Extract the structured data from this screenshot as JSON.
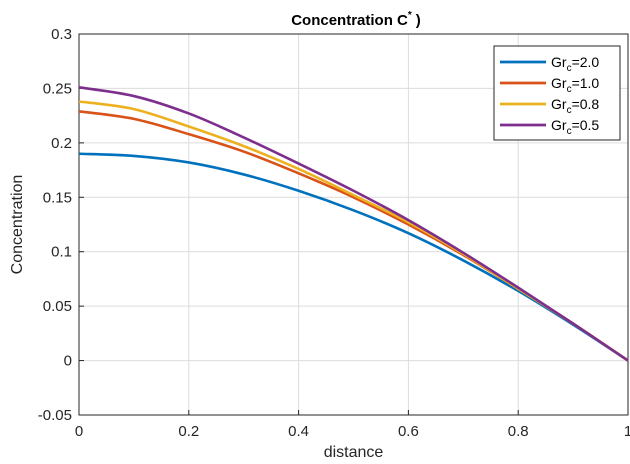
{
  "chart_data": {
    "type": "line",
    "title": "Concentration C",
    "title_superscript": "*",
    "title_suffix": ")",
    "xlabel": "distance",
    "ylabel": "Concentration",
    "xlim": [
      0,
      1
    ],
    "ylim": [
      -0.05,
      0.3
    ],
    "xticks": [
      "0",
      "0.2",
      "0.4",
      "0.6",
      "0.8",
      "1"
    ],
    "yticks": [
      "-0.05",
      "0",
      "0.05",
      "0.1",
      "0.15",
      "0.2",
      "0.25",
      "0.3"
    ],
    "grid": true,
    "legend_position": "top-right",
    "x": [
      0,
      0.1,
      0.2,
      0.3,
      0.4,
      0.5,
      0.6,
      0.7,
      0.8,
      0.9,
      1.0
    ],
    "series": [
      {
        "name_base": "Gr",
        "name_sub": "c",
        "name_value": "=2.0",
        "color": "#0072BD",
        "values": [
          0.19,
          0.188,
          0.182,
          0.171,
          0.156,
          0.138,
          0.117,
          0.092,
          0.064,
          0.033,
          0.0
        ]
      },
      {
        "name_base": "Gr",
        "name_sub": "c",
        "name_value": "=1.0",
        "color": "#D95319",
        "values": [
          0.229,
          0.222,
          0.208,
          0.192,
          0.172,
          0.15,
          0.125,
          0.097,
          0.066,
          0.034,
          0.0
        ]
      },
      {
        "name_base": "Gr",
        "name_sub": "c",
        "name_value": "=0.8",
        "color": "#EDB120",
        "values": [
          0.238,
          0.231,
          0.215,
          0.197,
          0.176,
          0.152,
          0.127,
          0.098,
          0.066,
          0.034,
          0.0
        ]
      },
      {
        "name_base": "Gr",
        "name_sub": "c",
        "name_value": "=0.5",
        "color": "#7E2F8E",
        "values": [
          0.251,
          0.243,
          0.227,
          0.205,
          0.181,
          0.156,
          0.129,
          0.099,
          0.067,
          0.034,
          0.0
        ]
      }
    ]
  }
}
